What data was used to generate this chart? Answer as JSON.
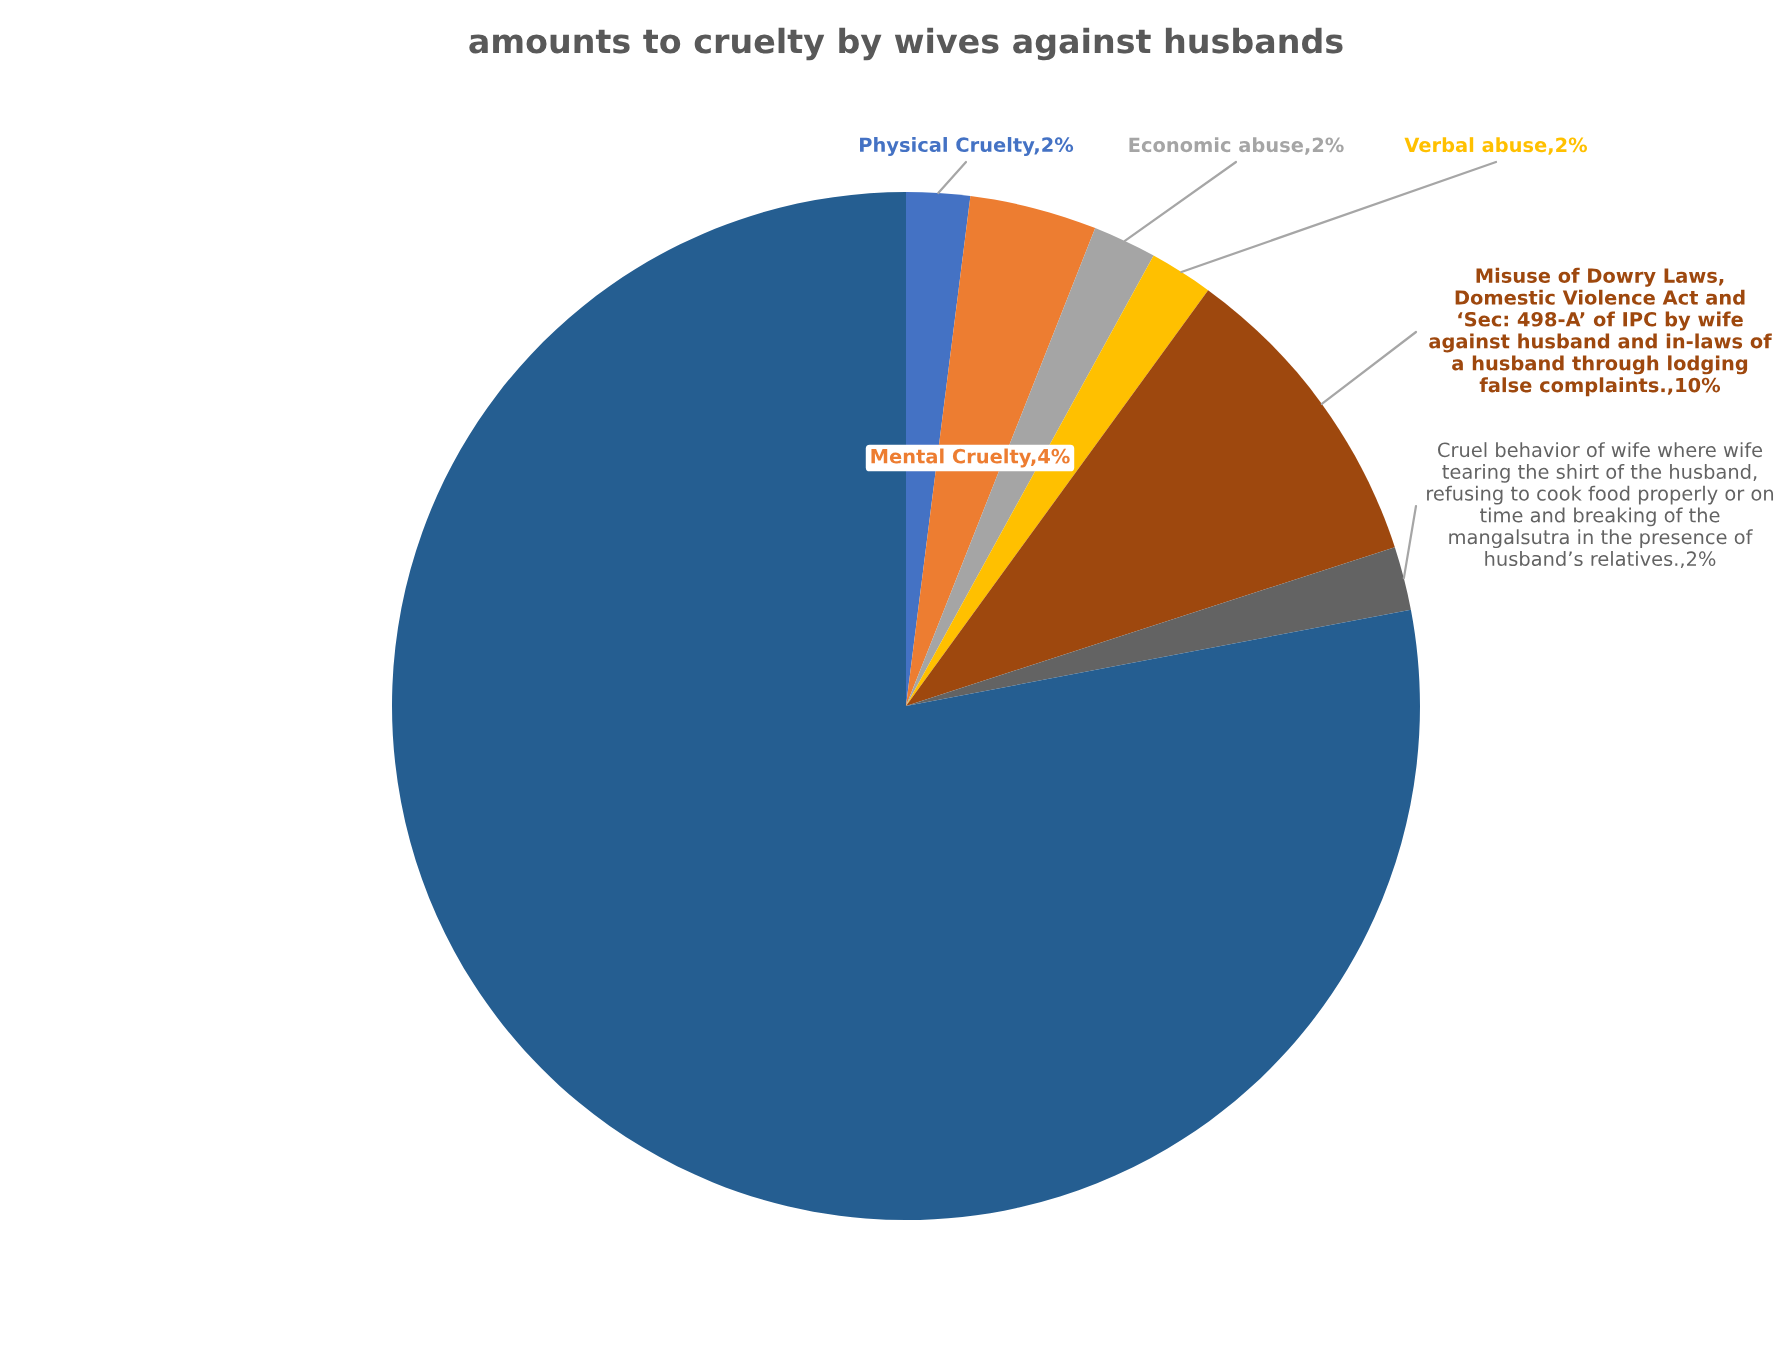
{
  "chart_data": {
    "type": "pie",
    "title": "amounts to cruelty by wives against husbands",
    "categories": [
      "Physical Cruelty",
      "Mental Cruelty",
      "Economic abuse",
      "Verbal abuse",
      "Misuse of Dowry Laws, Domestic Violence Act and ‘Sec: 498-A’ of IPC by wife against husband and in-laws of a husband through lodging false complaints.",
      "Cruel behavior of wife where wife tearing the shirt of the husband, refusing to cook food properly or on time and breaking of the mangalsutra in the presence of husband’s relatives.",
      null
    ],
    "values": [
      2,
      4,
      2,
      2,
      10,
      2,
      78
    ],
    "value_labels": [
      "2%",
      "4%",
      "2%",
      "2%",
      "10%",
      "2%",
      null
    ],
    "colors": [
      "#4472c4",
      "#ed7d31",
      "#a5a5a5",
      "#ffc000",
      "#9e480e",
      "#636363",
      "#255e91"
    ],
    "legend": false
  }
}
